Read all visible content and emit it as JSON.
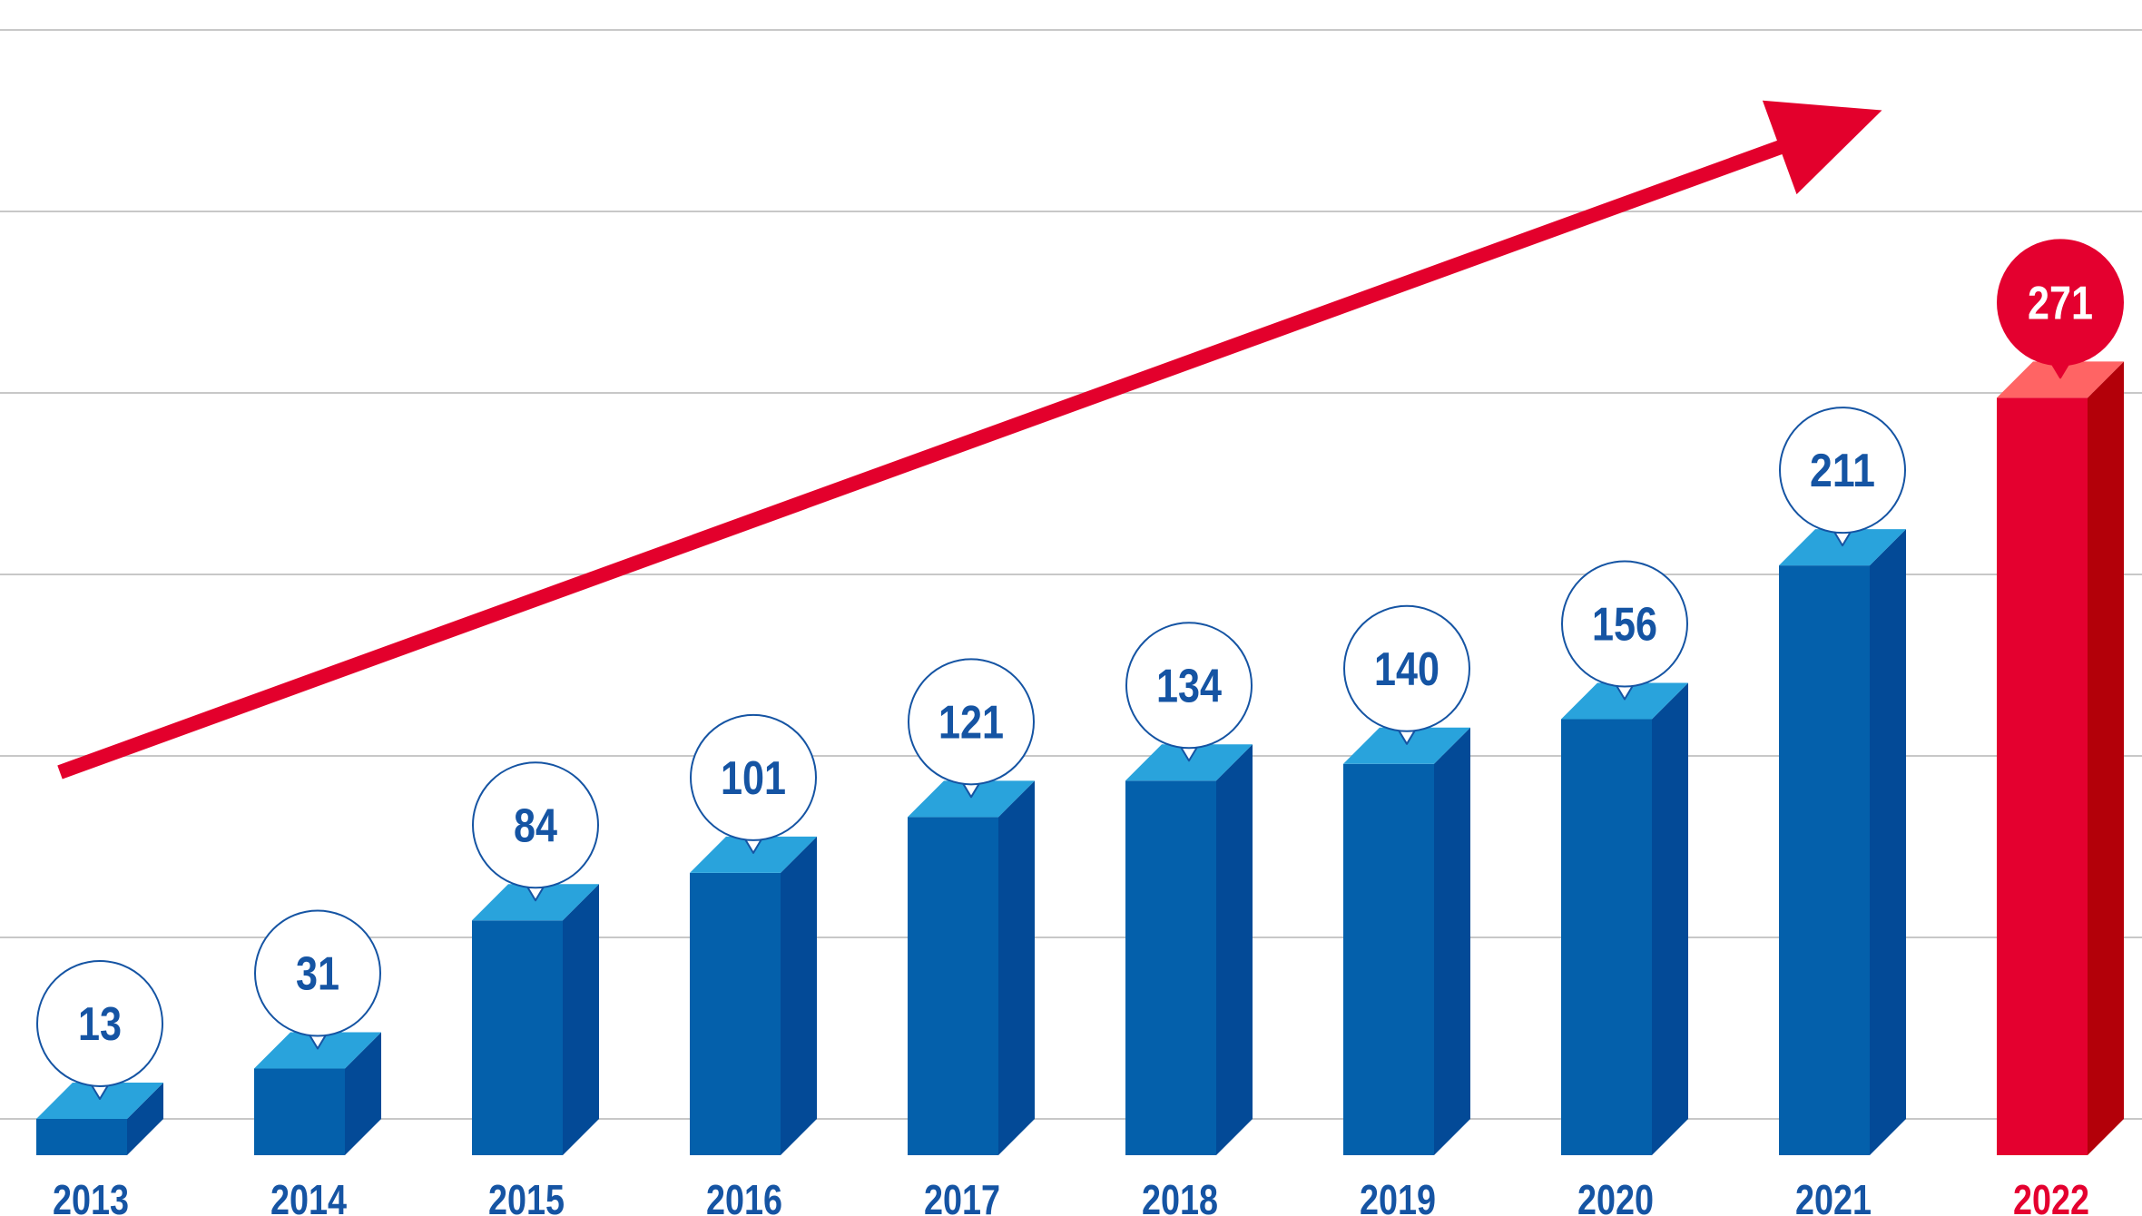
{
  "chart_data": {
    "type": "bar",
    "categories": [
      "2013",
      "2014",
      "2015",
      "2016",
      "2017",
      "2018",
      "2019",
      "2020",
      "2021",
      "2022"
    ],
    "values": [
      13,
      31,
      84,
      101,
      121,
      134,
      140,
      156,
      211,
      271
    ],
    "data_labels": [
      "13",
      "31",
      "84",
      "101",
      "121",
      "134",
      "140",
      "156",
      "211",
      "271"
    ],
    "highlight_category": "2022",
    "title": "",
    "xlabel": "",
    "ylabel": "",
    "ylim": [
      0,
      300
    ],
    "grid": true,
    "legend": "none",
    "trend_arrow": true,
    "colors": {
      "bar_front": "#0460ab",
      "bar_side": "#034a97",
      "bar_top": "#29a3dc",
      "highlight_front": "#e4002f",
      "highlight_side": "#b30009",
      "highlight_top": "#ff6464",
      "label_text": "#1554a3",
      "highlight_label_text": "#e4002f",
      "gridline": "#c8c8c8",
      "arrow": "#e3002c",
      "bubble_border": "#1554a3",
      "bubble_fill": "#ffffff",
      "highlight_bubble_fill": "#e4002f",
      "highlight_bubble_text": "#ffffff"
    }
  }
}
